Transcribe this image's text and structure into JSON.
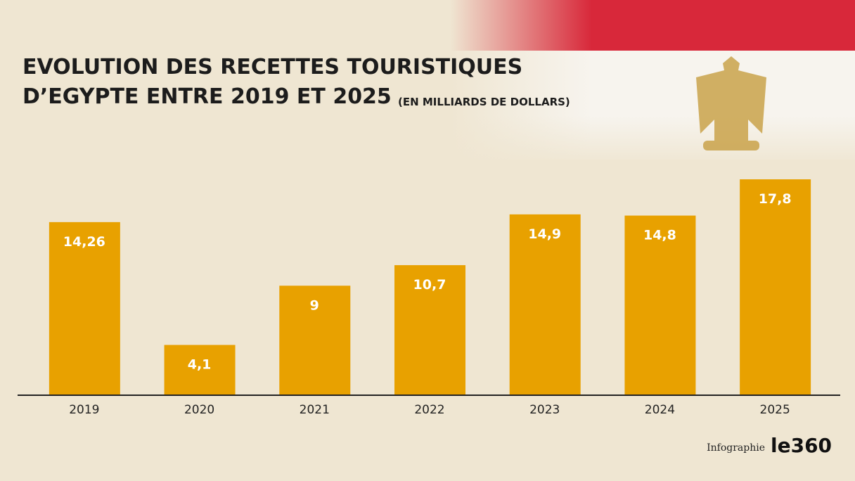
{
  "chart_data": {
    "type": "bar",
    "title": [
      "EVOLUTION DES RECETTES TOURISTIQUES",
      "D’EGYPTE ENTRE 2019 ET 2025"
    ],
    "subtitle": "(EN  MILLIARDS DE DOLLARS)",
    "categories": [
      "2019",
      "2020",
      "2021",
      "2022",
      "2023",
      "2024",
      "2025"
    ],
    "values": [
      14.26,
      4.1,
      9,
      10.7,
      14.9,
      14.8,
      17.8
    ],
    "value_labels": [
      "14,26",
      "4,1",
      "9",
      "10,7",
      "14,9",
      "14,8",
      "17,8"
    ],
    "color": "#e8a100"
  },
  "credit": "Infographie",
  "logo": "le360"
}
